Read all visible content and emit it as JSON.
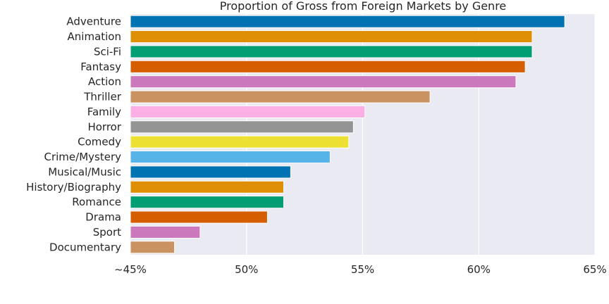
{
  "chart_data": {
    "type": "bar",
    "orientation": "horizontal",
    "title": "Proportion of Gross from Foreign Markets by Genre",
    "xlabel": "",
    "ylabel": "",
    "xlim": [
      45,
      65
    ],
    "grid": "vertical",
    "background": "#eaeaf2",
    "xticks": [
      {
        "value": 45,
        "label": "~45%"
      },
      {
        "value": 50,
        "label": "50%"
      },
      {
        "value": 55,
        "label": "55%"
      },
      {
        "value": 60,
        "label": "60%"
      },
      {
        "value": 65,
        "label": "65%"
      }
    ],
    "categories": [
      "Adventure",
      "Animation",
      "Sci-Fi",
      "Fantasy",
      "Action",
      "Thriller",
      "Family",
      "Horror",
      "Comedy",
      "Crime/Mystery",
      "Musical/Music",
      "History/Biography",
      "Romance",
      "Drama",
      "Sport",
      "Documentary"
    ],
    "values": [
      63.7,
      62.3,
      62.3,
      62.0,
      61.6,
      57.9,
      55.1,
      54.6,
      54.4,
      53.6,
      51.9,
      51.6,
      51.6,
      50.9,
      48.0,
      46.9
    ],
    "colors": [
      "#0173b2",
      "#de8f05",
      "#029e73",
      "#d55e00",
      "#cc78bc",
      "#ca9161",
      "#fbafe4",
      "#949494",
      "#ece133",
      "#56b4e9",
      "#0173b2",
      "#de8f05",
      "#029e73",
      "#d55e00",
      "#cc78bc",
      "#ca9161"
    ]
  }
}
